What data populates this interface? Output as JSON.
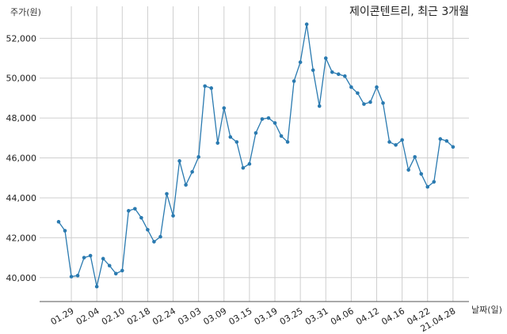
{
  "chart_data": {
    "type": "line",
    "title": "제이콘텐트리, 최근 3개월",
    "xlabel": "날짜(일)",
    "ylabel": "주가(원)",
    "color": "#2a7ab0",
    "ylim": [
      38800,
      53600
    ],
    "y_ticks": [
      40000,
      42000,
      44000,
      46000,
      48000,
      50000,
      52000
    ],
    "y_tick_labels": [
      "40,000",
      "42,000",
      "44,000",
      "46,000",
      "48,000",
      "50,000",
      "52,000"
    ],
    "x_tick_labels": [
      "01.29",
      "02.04",
      "02.10",
      "02.18",
      "02.24",
      "03.03",
      "03.09",
      "03.15",
      "03.19",
      "03.25",
      "03.31",
      "04.06",
      "04.12",
      "04.16",
      "04.22",
      "21.04.28"
    ],
    "x_tick_index": [
      2,
      6,
      10,
      14,
      18,
      22,
      26,
      30,
      34,
      38,
      42,
      46,
      50,
      54,
      58,
      62
    ],
    "n_points": 63,
    "values": [
      42800,
      42350,
      40050,
      40100,
      41000,
      41100,
      39550,
      40950,
      40600,
      40200,
      40350,
      43350,
      43450,
      43000,
      42400,
      41800,
      42050,
      44200,
      43100,
      45850,
      44650,
      45300,
      46050,
      49600,
      49500,
      46750,
      48500,
      47050,
      46800,
      45500,
      45700,
      47250,
      47950,
      48000,
      47750,
      47100,
      46800,
      49850,
      50800,
      52700,
      50400,
      48600,
      51000,
      50300,
      50200,
      50100,
      49550,
      49250,
      48700,
      48800,
      49550,
      48750,
      46800,
      46650,
      46900,
      45400,
      46050,
      45200,
      44550,
      44800,
      46950,
      46850,
      46550
    ]
  }
}
